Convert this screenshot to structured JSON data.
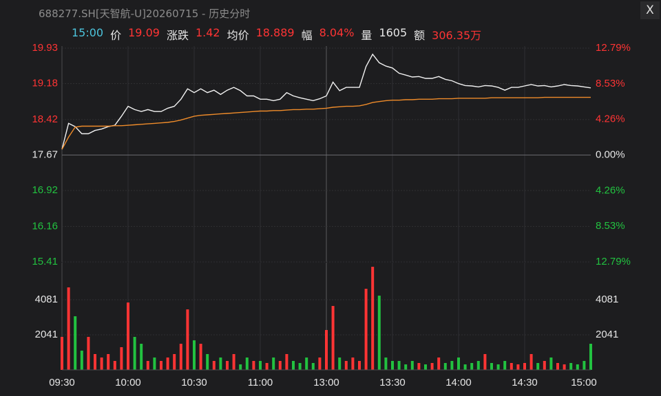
{
  "window": {
    "title": "688277.SH[天智航-U]20260715 - 历史分时",
    "close_label": "X"
  },
  "quote": {
    "time": "15:00",
    "time_color": "#4cc4dc",
    "items": [
      {
        "label": "价",
        "value": "19.09",
        "color": "#ff3434"
      },
      {
        "label": "涨跌",
        "value": "1.42",
        "color": "#ff3434"
      },
      {
        "label": "均价",
        "value": "18.889",
        "color": "#ff3434"
      },
      {
        "label": "幅",
        "value": "8.04%",
        "color": "#ff3434"
      },
      {
        "label": "量",
        "value": "1605",
        "color": "#e6e6e6"
      },
      {
        "label": "额",
        "value": "306.35万",
        "color": "#ff3434"
      }
    ]
  },
  "chart_data": [
    {
      "type": "line",
      "x": [
        0,
        3,
        6,
        9,
        12,
        15,
        18,
        21,
        24,
        27,
        30,
        33,
        36,
        39,
        42,
        45,
        48,
        51,
        54,
        57,
        60,
        63,
        66,
        69,
        72,
        75,
        78,
        81,
        84,
        87,
        90,
        93,
        96,
        99,
        102,
        105,
        108,
        111,
        114,
        117,
        120,
        123,
        126,
        129,
        132,
        135,
        138,
        141,
        144,
        147,
        150,
        153,
        156,
        159,
        162,
        165,
        168,
        171,
        174,
        177,
        180,
        183,
        186,
        189,
        192,
        195,
        198,
        201,
        204,
        207,
        210,
        213,
        216,
        219,
        222,
        225,
        228,
        231,
        234,
        237,
        240
      ],
      "series": [
        {
          "color": "#f2f2f2",
          "values": [
            17.79,
            18.34,
            18.27,
            18.12,
            18.12,
            18.19,
            18.22,
            18.27,
            18.3,
            18.49,
            18.7,
            18.63,
            18.59,
            18.63,
            18.59,
            18.59,
            18.66,
            18.7,
            18.85,
            19.07,
            18.99,
            19.07,
            18.99,
            19.04,
            18.95,
            19.04,
            19.1,
            19.03,
            18.92,
            18.92,
            18.85,
            18.85,
            18.82,
            18.85,
            18.99,
            18.92,
            18.88,
            18.85,
            18.82,
            18.86,
            18.92,
            19.21,
            19.03,
            19.1,
            19.1,
            19.1,
            19.54,
            19.8,
            19.62,
            19.55,
            19.51,
            19.4,
            19.36,
            19.32,
            19.33,
            19.29,
            19.29,
            19.33,
            19.27,
            19.24,
            19.18,
            19.14,
            19.13,
            19.11,
            19.14,
            19.13,
            19.1,
            19.04,
            19.1,
            19.1,
            19.13,
            19.16,
            19.13,
            19.14,
            19.11,
            19.13,
            19.16,
            19.14,
            19.13,
            19.11,
            19.09
          ]
        },
        {
          "color": "#f08c2a",
          "values": [
            17.79,
            18.05,
            18.26,
            18.28,
            18.28,
            18.28,
            18.28,
            18.28,
            18.29,
            18.29,
            18.3,
            18.31,
            18.32,
            18.33,
            18.34,
            18.35,
            18.36,
            18.38,
            18.41,
            18.45,
            18.49,
            18.51,
            18.52,
            18.53,
            18.54,
            18.55,
            18.56,
            18.57,
            18.58,
            18.59,
            18.6,
            18.6,
            18.61,
            18.61,
            18.62,
            18.63,
            18.63,
            18.64,
            18.64,
            18.65,
            18.66,
            18.68,
            18.69,
            18.7,
            18.7,
            18.71,
            18.74,
            18.78,
            18.8,
            18.82,
            18.83,
            18.83,
            18.84,
            18.84,
            18.85,
            18.85,
            18.85,
            18.86,
            18.86,
            18.86,
            18.87,
            18.87,
            18.87,
            18.87,
            18.87,
            18.88,
            18.88,
            18.88,
            18.88,
            18.88,
            18.88,
            18.88,
            18.88,
            18.89,
            18.89,
            18.89,
            18.89,
            18.89,
            18.89,
            18.89,
            18.889
          ]
        }
      ],
      "xlim": [
        0,
        240
      ],
      "ylim": [
        15.41,
        19.93
      ],
      "yticks": [
        19.93,
        19.18,
        18.42,
        17.67,
        16.92,
        16.16,
        15.41
      ],
      "y2lim": [
        -12.79,
        12.79
      ],
      "y2ticks": [
        {
          "value": 12.79,
          "label": "12.79%"
        },
        {
          "value": 8.53,
          "label": "8.53%"
        },
        {
          "value": 4.26,
          "label": "4.26%"
        },
        {
          "value": 0,
          "label": "0.00%"
        },
        {
          "value": -4.26,
          "label": "4.26%"
        },
        {
          "value": -8.53,
          "label": "8.53%"
        },
        {
          "value": -12.79,
          "label": "12.79%"
        }
      ],
      "up_color": "#ff3434",
      "down_color": "#22c240",
      "grid": true
    },
    {
      "type": "bar",
      "x": [
        0,
        3,
        6,
        9,
        12,
        15,
        18,
        21,
        24,
        27,
        30,
        33,
        36,
        39,
        42,
        45,
        48,
        51,
        54,
        57,
        60,
        63,
        66,
        69,
        72,
        75,
        78,
        81,
        84,
        87,
        90,
        93,
        96,
        99,
        102,
        105,
        108,
        111,
        114,
        117,
        120,
        123,
        126,
        129,
        132,
        135,
        138,
        141,
        144,
        147,
        150,
        153,
        156,
        159,
        162,
        165,
        168,
        171,
        174,
        177,
        180,
        183,
        186,
        189,
        192,
        195,
        198,
        201,
        204,
        207,
        210,
        213,
        216,
        219,
        222,
        225,
        228,
        231,
        234,
        237,
        240
      ],
      "values": [
        1920,
        4800,
        3120,
        1120,
        1920,
        920,
        720,
        920,
        520,
        1320,
        3920,
        1920,
        1520,
        520,
        720,
        520,
        720,
        920,
        1520,
        3520,
        1720,
        1520,
        920,
        520,
        720,
        520,
        920,
        320,
        720,
        520,
        520,
        400,
        720,
        520,
        920,
        520,
        400,
        720,
        400,
        720,
        2320,
        3720,
        720,
        520,
        720,
        520,
        4720,
        6000,
        4320,
        720,
        520,
        520,
        320,
        520,
        400,
        320,
        400,
        720,
        400,
        520,
        720,
        320,
        400,
        520,
        920,
        400,
        320,
        520,
        400,
        320,
        400,
        920,
        400,
        520,
        720,
        400,
        320,
        400,
        320,
        520,
        1520
      ],
      "xlim": [
        0,
        240
      ],
      "xticks": [
        {
          "value": 0,
          "label": "09:30"
        },
        {
          "value": 30,
          "label": "10:00"
        },
        {
          "value": 60,
          "label": "10:30"
        },
        {
          "value": 90,
          "label": "11:00"
        },
        {
          "value": 120,
          "label": "13:00"
        },
        {
          "value": 150,
          "label": "13:30"
        },
        {
          "value": 180,
          "label": "14:00"
        },
        {
          "value": 210,
          "label": "14:30"
        },
        {
          "value": 240,
          "label": "15:00"
        }
      ],
      "ylim": [
        0,
        6122
      ],
      "yticks": [
        4081,
        2041
      ],
      "up_color": "#ff3434",
      "down_color": "#22c240",
      "grid": true
    }
  ]
}
